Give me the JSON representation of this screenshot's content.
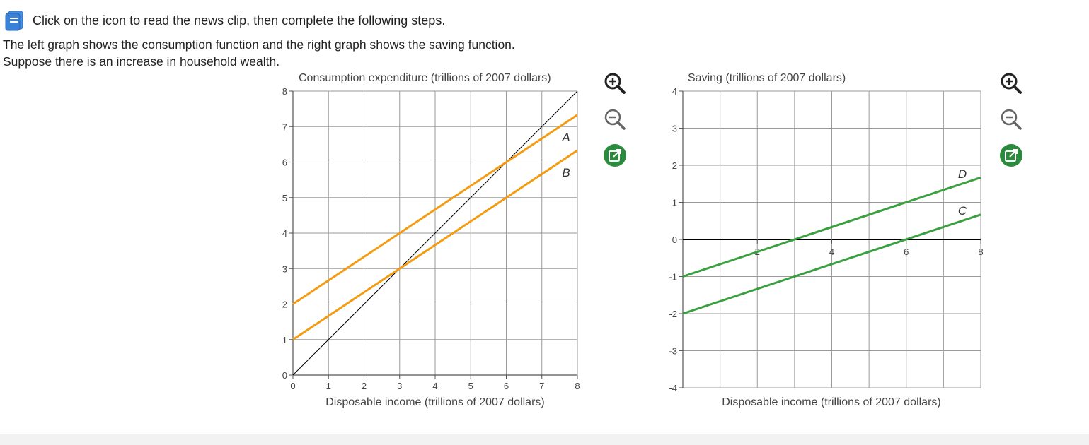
{
  "header": {
    "icon": "news-clip-icon",
    "instruction": "Click on the icon to read the news clip, then complete the following steps."
  },
  "intro": {
    "line1": "The left graph shows the consumption function and the right graph shows the saving function.",
    "line2": "Suppose there is an increase in household wealth."
  },
  "tools": {
    "zoom_in_icon": "zoom-in-icon",
    "zoom_out_icon": "zoom-out-icon",
    "popout_icon": "popout-icon"
  },
  "colors": {
    "consumption_lines": "#f39c12",
    "saving_lines": "#3aa03f",
    "reference_line": "#000000",
    "grid": "#9a9a9a",
    "tool_accent": "#2b8a3e"
  },
  "chart_data": [
    {
      "type": "line",
      "ylabel": "Consumption expenditure (trillions of 2007 dollars)",
      "xlabel": "Disposable income (trillions of 2007 dollars)",
      "xlim": [
        0,
        8
      ],
      "ylim": [
        0,
        8
      ],
      "x_ticks": [
        "0",
        "1",
        "2",
        "3",
        "4",
        "5",
        "6",
        "7",
        "8"
      ],
      "y_ticks": [
        "0",
        "1",
        "2",
        "3",
        "4",
        "5",
        "6",
        "7",
        "8"
      ],
      "grid": true,
      "series": [
        {
          "name": "",
          "x": [
            0,
            8
          ],
          "y": [
            0,
            8
          ]
        },
        {
          "name": "A",
          "x": [
            0,
            8
          ],
          "y": [
            2,
            7.33
          ]
        },
        {
          "name": "B",
          "x": [
            0,
            8
          ],
          "y": [
            1,
            6.33
          ]
        }
      ]
    },
    {
      "type": "line",
      "ylabel": "Saving (trillions of 2007 dollars)",
      "xlabel": "Disposable income (trillions of 2007 dollars)",
      "xlim": [
        0,
        8
      ],
      "ylim": [
        -4,
        4
      ],
      "x_ticks": [
        "2",
        "4",
        "6",
        "8"
      ],
      "y_ticks": [
        "4",
        "3",
        "2",
        "1",
        "0",
        "-1",
        "-2",
        "-3",
        "-4"
      ],
      "grid": true,
      "series": [
        {
          "name": "D",
          "x": [
            0,
            8
          ],
          "y": [
            -1,
            1.67
          ]
        },
        {
          "name": "C",
          "x": [
            0,
            8
          ],
          "y": [
            -2,
            0.67
          ]
        }
      ]
    }
  ]
}
